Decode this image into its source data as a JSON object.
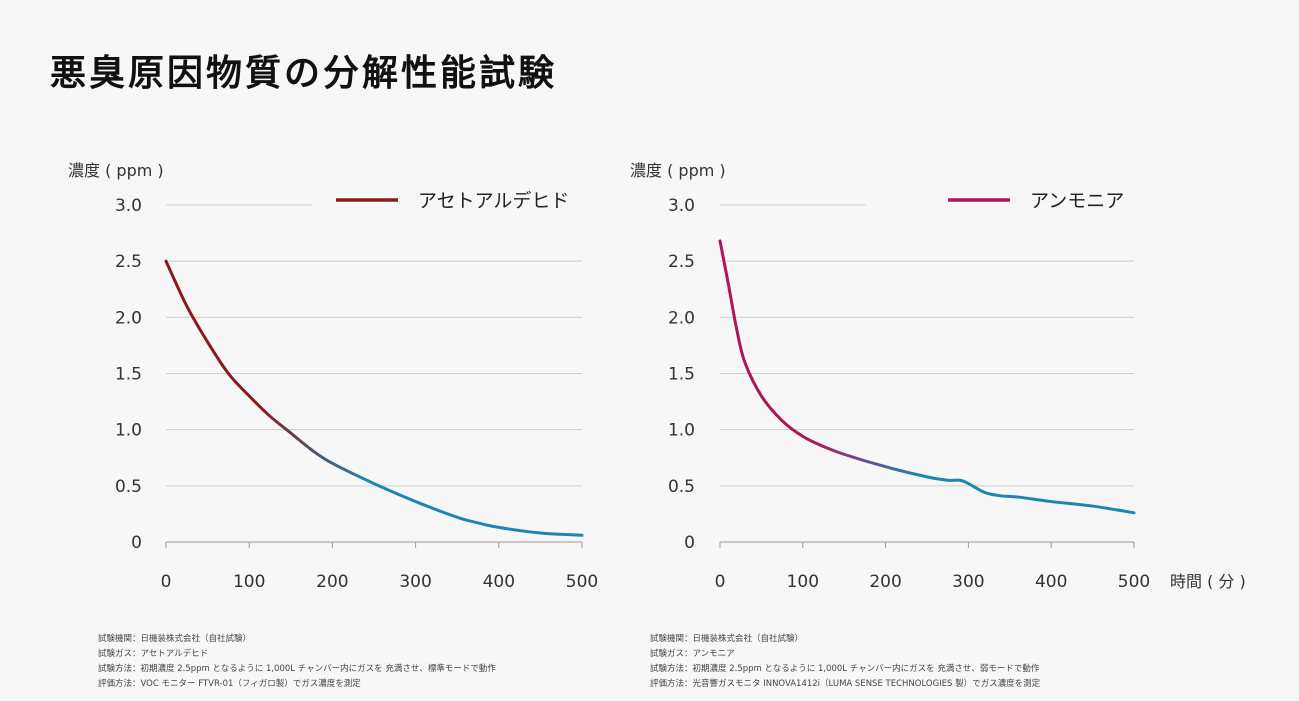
{
  "title": "悪臭原因物質の分解性能試験",
  "chart_data": [
    {
      "type": "line",
      "ylabel": "濃度 ( ppm )",
      "xlabel": "",
      "ylim": [
        0,
        3.0
      ],
      "xlim": [
        0,
        500
      ],
      "yticks": [
        "0",
        "0.5",
        "1.0",
        "1.5",
        "2.0",
        "2.5",
        "3.0"
      ],
      "xticks": [
        "0",
        "100",
        "200",
        "300",
        "400",
        "500"
      ],
      "grid": true,
      "legend_position": "top-right",
      "series": [
        {
          "name": "アセトアルデヒド",
          "color": "#8b1a1a",
          "gradient_end": "#1b86b5",
          "x": [
            0,
            25,
            50,
            75,
            100,
            125,
            150,
            175,
            200,
            250,
            300,
            350,
            375,
            400,
            450,
            500
          ],
          "y": [
            2.5,
            2.1,
            1.78,
            1.5,
            1.3,
            1.12,
            0.97,
            0.82,
            0.7,
            0.52,
            0.36,
            0.22,
            0.17,
            0.13,
            0.08,
            0.06
          ]
        }
      ],
      "notes": [
        "試験機関：日機装株式会社（自社試験）",
        "試験ガス：アセトアルデヒド",
        "試験方法：初期濃度 2.5ppm となるように 1,000L チャンバー内にガスを 充満させ、標準モードで動作",
        "評価方法：VOC モニター FTVR-01（フィガロ製）でガス濃度を測定"
      ]
    },
    {
      "type": "line",
      "ylabel": "濃度 ( ppm )",
      "xlabel": "時間 ( 分 )",
      "ylim": [
        0,
        3.0
      ],
      "xlim": [
        0,
        500
      ],
      "yticks": [
        "0",
        "0.5",
        "1.0",
        "1.5",
        "2.0",
        "2.5",
        "3.0"
      ],
      "xticks": [
        "0",
        "100",
        "200",
        "300",
        "400",
        "500"
      ],
      "grid": true,
      "legend_position": "top-right",
      "series": [
        {
          "name": "アンモニア",
          "color": "#b0145a",
          "gradient_end": "#1b86b5",
          "x": [
            0,
            10,
            20,
            30,
            50,
            75,
            100,
            125,
            150,
            200,
            250,
            275,
            290,
            300,
            320,
            340,
            360,
            400,
            450,
            500
          ],
          "y": [
            2.68,
            2.3,
            1.9,
            1.6,
            1.3,
            1.08,
            0.94,
            0.85,
            0.78,
            0.67,
            0.58,
            0.55,
            0.55,
            0.52,
            0.44,
            0.41,
            0.4,
            0.36,
            0.32,
            0.26
          ]
        }
      ],
      "notes": [
        "試験機関：日機装株式会社（自社試験）",
        "試験ガス：アンモニア",
        "試験方法：初期濃度 2.5ppm となるように 1,000L チャンバー内にガスを 充満させ、弱モードで動作",
        "評価方法：光音響ガスモニタ INNOVA1412i（LUMA SENSE TECHNOLOGIES 製）でガス濃度を測定"
      ]
    }
  ]
}
